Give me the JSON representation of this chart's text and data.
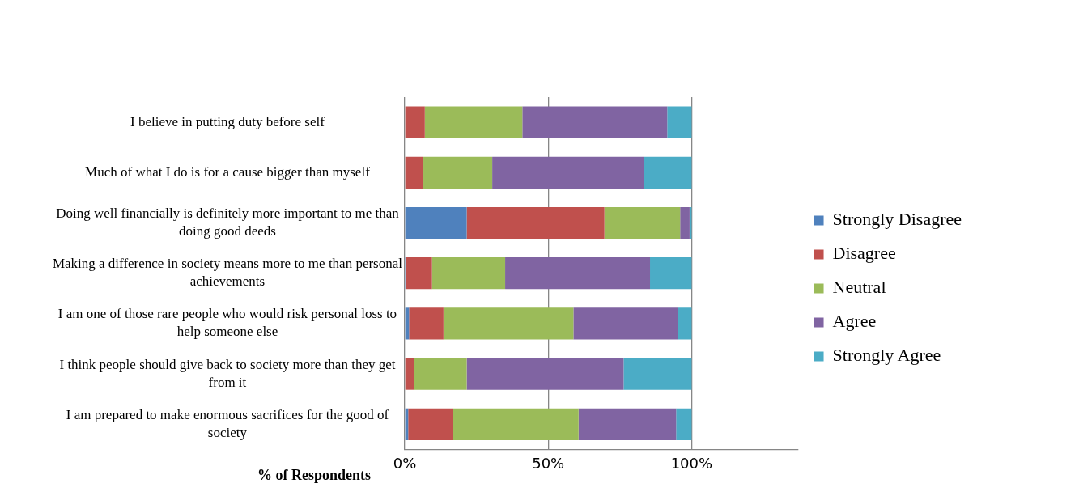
{
  "chart_data": {
    "type": "bar",
    "orientation": "horizontal",
    "stacked": true,
    "xlabel": "% of Respondents",
    "categories": [
      "I believe in putting duty before self",
      "Much of what I do is for a cause bigger than myself",
      "Doing well financially is definitely more important to me than doing good deeds",
      "Making a difference in society means more to me than personal achievements",
      "I am one of those rare people who would risk personal loss to help someone else",
      "I think people should give back to society more than they get from it",
      "I am prepared to make enormous sacrifices for the good of society"
    ],
    "series": [
      {
        "name": "Strongly Disagree",
        "color": "#4f81bd",
        "values": [
          0,
          0,
          21.6,
          0.5,
          1.5,
          0,
          1.2
        ]
      },
      {
        "name": "Disagree",
        "color": "#c0504d",
        "values": [
          7,
          6.5,
          48,
          9,
          12,
          3.3,
          15.6
        ]
      },
      {
        "name": "Neutral",
        "color": "#9bbb59",
        "values": [
          34,
          24,
          26.4,
          25.5,
          45.3,
          18.3,
          43.8
        ]
      },
      {
        "name": "Agree",
        "color": "#8064a2",
        "values": [
          50.5,
          53,
          3.3,
          50.5,
          36.3,
          54.7,
          34
        ]
      },
      {
        "name": "Strongly Agree",
        "color": "#4bacc6",
        "values": [
          8.5,
          16.5,
          0.7,
          14.5,
          4.9,
          23.7,
          5.4
        ]
      }
    ],
    "xlim": [
      0,
      137
    ],
    "xticks": [
      {
        "value": 0,
        "label": "0%"
      },
      {
        "value": 50,
        "label": "50%"
      },
      {
        "value": 100,
        "label": "100%"
      }
    ],
    "grid": "x",
    "legend": "right"
  }
}
